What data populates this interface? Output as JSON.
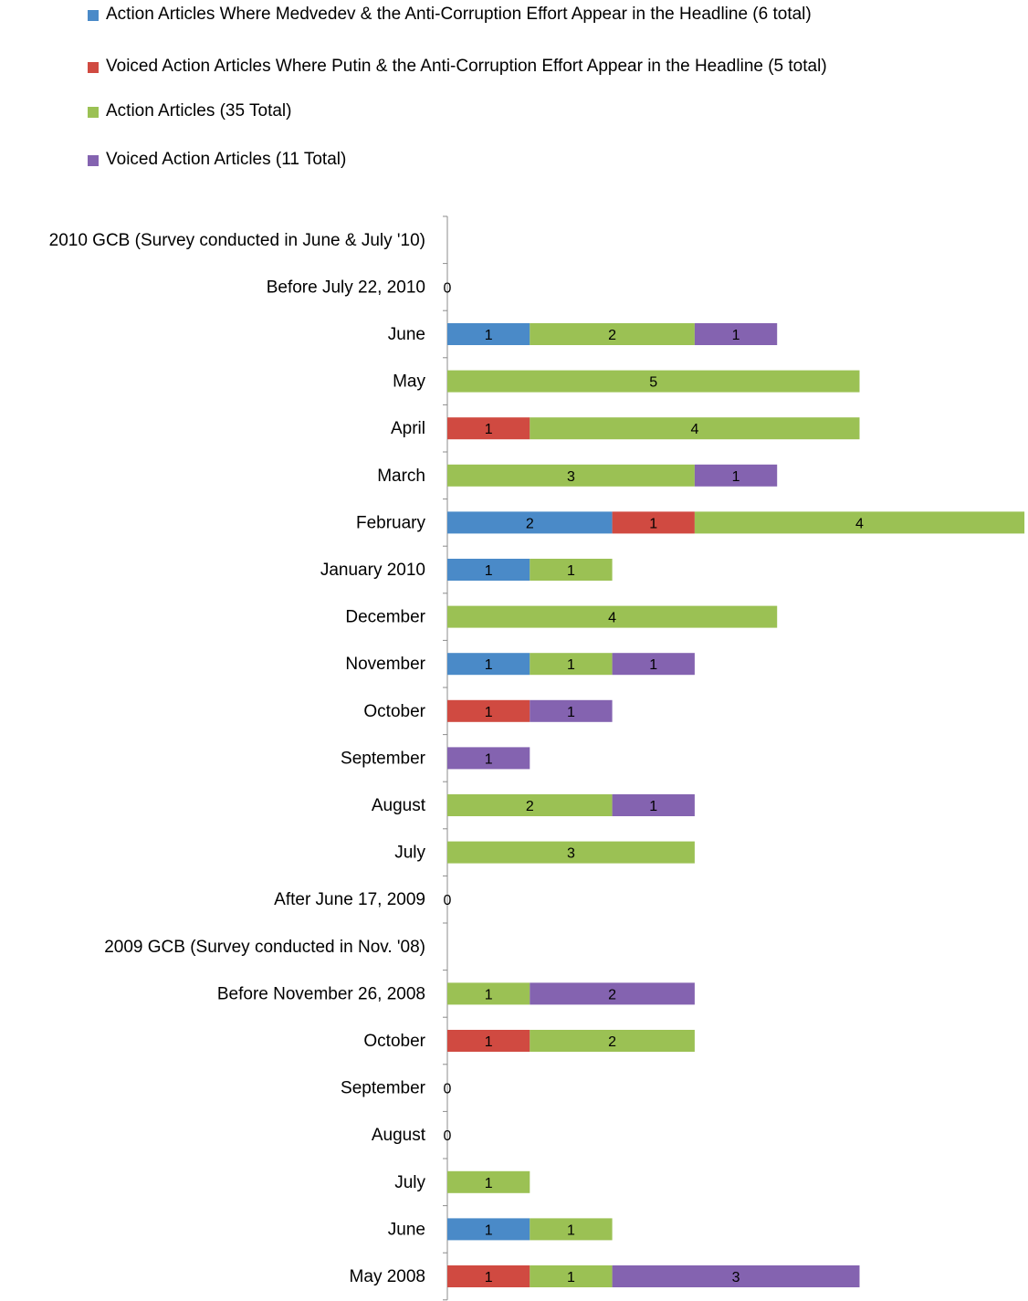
{
  "colors": {
    "medvedev": "#4a8ac8",
    "putin": "#d04a41",
    "action": "#9bc154",
    "voiced": "#8463b0",
    "axis": "#8c8c8c"
  },
  "chart_data": {
    "type": "bar",
    "orientation": "horizontal",
    "stacked": true,
    "legend_position": "top",
    "grid": false,
    "xlim": [
      0,
      7
    ],
    "categories": [
      "2010 GCB (Survey conducted in June & July '10)",
      "Before July 22, 2010",
      "June",
      "May",
      "April",
      "March",
      "February",
      "January 2010",
      "December",
      "November",
      "October",
      "September",
      "August",
      "July",
      "After June 17, 2009",
      "2009 GCB (Survey conducted in Nov. '08)",
      "Before November 26, 2008",
      "October",
      "September",
      "August",
      "July",
      "June",
      "May 2008"
    ],
    "series": [
      {
        "name": "Action Articles Where Medvedev & the Anti-Corruption Effort Appear in the Headline (6 total)",
        "color_key": "medvedev",
        "values": [
          null,
          null,
          1,
          null,
          null,
          null,
          2,
          1,
          null,
          1,
          null,
          null,
          null,
          null,
          null,
          null,
          null,
          null,
          null,
          null,
          null,
          1,
          null
        ]
      },
      {
        "name": "Voiced Action Articles Where Putin & the Anti-Corruption Effort Appear in the Headline (5 total)",
        "color_key": "putin",
        "values": [
          null,
          null,
          null,
          null,
          1,
          null,
          1,
          null,
          null,
          null,
          1,
          null,
          null,
          null,
          null,
          null,
          null,
          1,
          null,
          null,
          null,
          null,
          1
        ]
      },
      {
        "name": "Action Articles (35 Total)",
        "color_key": "action",
        "values": [
          null,
          null,
          2,
          5,
          4,
          3,
          4,
          1,
          4,
          1,
          null,
          null,
          2,
          3,
          null,
          null,
          1,
          2,
          null,
          null,
          1,
          1,
          1
        ]
      },
      {
        "name": "Voiced Action Articles (11 Total)",
        "color_key": "voiced",
        "values": [
          null,
          null,
          1,
          null,
          null,
          1,
          null,
          null,
          null,
          1,
          1,
          1,
          1,
          null,
          null,
          null,
          2,
          null,
          null,
          null,
          null,
          null,
          3
        ]
      }
    ],
    "zero_labels": [
      "0",
      "0",
      "0",
      "0"
    ],
    "zero_label_rows": [
      1,
      14,
      18,
      19
    ]
  }
}
